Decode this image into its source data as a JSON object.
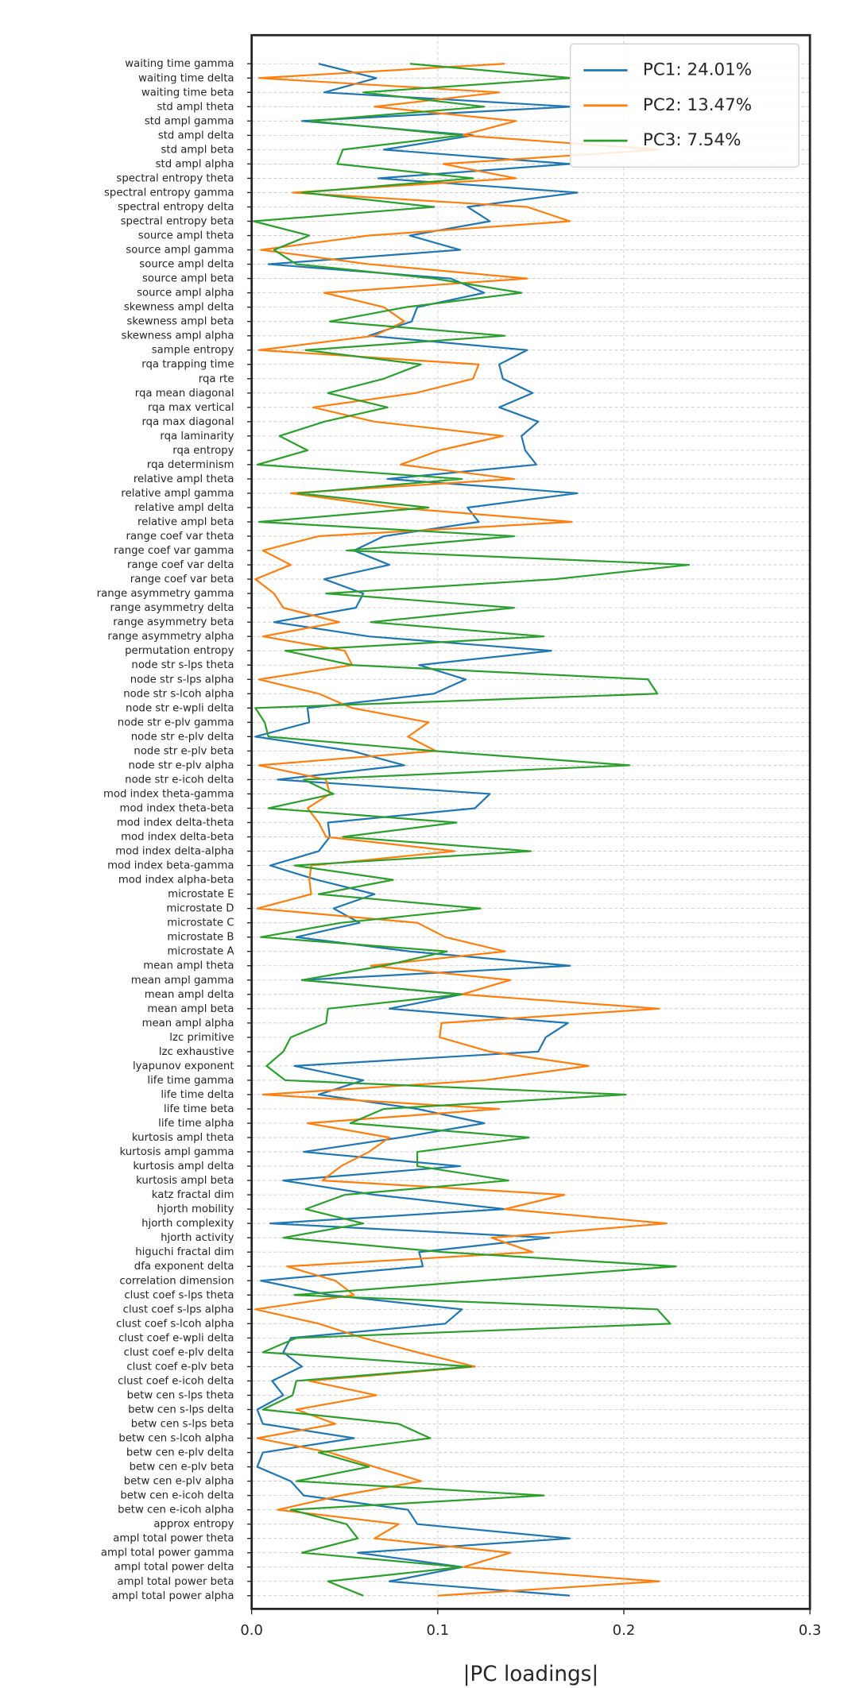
{
  "chart_data": {
    "type": "line",
    "orientation": "horizontal",
    "xlabel": "|PC loadings|",
    "xlim": [
      0,
      0.3
    ],
    "xticks": [
      {
        "value": 0,
        "label": "0.0"
      },
      0.1,
      0.2,
      0.3
    ],
    "grid": true,
    "legend": "upper right",
    "categories": [
      "waiting time gamma",
      "waiting time delta",
      "waiting time beta",
      "std ampl theta",
      "std ampl gamma",
      "std ampl delta",
      "std ampl beta",
      "std ampl alpha",
      "spectral entropy theta",
      "spectral entropy gamma",
      "spectral entropy delta",
      "spectral entropy beta",
      "source ampl theta",
      "source ampl gamma",
      "source ampl delta",
      "source ampl beta",
      "source ampl alpha",
      "skewness ampl delta",
      "skewness ampl beta",
      "skewness ampl alpha",
      "sample entropy",
      "rqa trapping time",
      "rqa rte",
      "rqa mean diagonal",
      "rqa max vertical",
      "rqa max diagonal",
      "rqa laminarity",
      "rqa entropy",
      "rqa determinism",
      "relative ampl theta",
      "relative ampl gamma",
      "relative ampl delta",
      "relative ampl beta",
      "range coef var theta",
      "range coef var gamma",
      "range coef var delta",
      "range coef var beta",
      "range asymmetry gamma",
      "range asymmetry delta",
      "range asymmetry beta",
      "range asymmetry alpha",
      "permutation entropy",
      "node str s-lps theta",
      "node str s-lps alpha",
      "node str s-lcoh alpha",
      "node str e-wpli delta",
      "node str e-plv gamma",
      "node str e-plv delta",
      "node str e-plv beta",
      "node str e-plv alpha",
      "node str e-icoh delta",
      "mod index theta-gamma",
      "mod index theta-beta",
      "mod index delta-theta",
      "mod index delta-beta",
      "mod index delta-alpha",
      "mod index beta-gamma",
      "mod index alpha-beta",
      "microstate E",
      "microstate D",
      "microstate C",
      "microstate B",
      "microstate A",
      "mean ampl theta",
      "mean ampl gamma",
      "mean ampl delta",
      "mean ampl beta",
      "mean ampl alpha",
      "lzc primitive",
      "lzc exhaustive",
      "lyapunov exponent",
      "life time gamma",
      "life time delta",
      "life time beta",
      "life time alpha",
      "kurtosis ampl theta",
      "kurtosis ampl gamma",
      "kurtosis ampl delta",
      "kurtosis ampl beta",
      "katz fractal dim",
      "hjorth mobility",
      "hjorth complexity",
      "hjorth activity",
      "higuchi fractal dim",
      "dfa exponent delta",
      "correlation dimension",
      "clust coef s-lps theta",
      "clust coef s-lps alpha",
      "clust coef s-lcoh alpha",
      "clust coef e-wpli delta",
      "clust coef e-plv delta",
      "clust coef e-plv beta",
      "clust coef e-icoh delta",
      "betw cen s-lps theta",
      "betw cen s-lps delta",
      "betw cen s-lps beta",
      "betw cen s-lcoh alpha",
      "betw cen e-plv delta",
      "betw cen e-plv beta",
      "betw cen e-plv alpha",
      "betw cen e-icoh delta",
      "betw cen e-icoh alpha",
      "approx entropy",
      "ampl total power theta",
      "ampl total power gamma",
      "ampl total power delta",
      "ampl total power beta",
      "ampl total power alpha"
    ],
    "series": [
      {
        "name": "PC1: 24.01%",
        "color": "#1f77b4",
        "values": [
          0.036,
          0.067,
          0.039,
          0.172,
          0.027,
          0.119,
          0.071,
          0.171,
          0.068,
          0.175,
          0.116,
          0.128,
          0.085,
          0.112,
          0.009,
          0.107,
          0.125,
          0.089,
          0.086,
          0.063,
          0.148,
          0.133,
          0.135,
          0.151,
          0.133,
          0.154,
          0.145,
          0.147,
          0.153,
          0.073,
          0.175,
          0.116,
          0.122,
          0.071,
          0.055,
          0.074,
          0.039,
          0.06,
          0.056,
          0.012,
          0.063,
          0.161,
          0.09,
          0.115,
          0.098,
          0.03,
          0.031,
          0.002,
          0.054,
          0.082,
          0.014,
          0.128,
          0.12,
          0.041,
          0.042,
          0.036,
          0.01,
          0.035,
          0.066,
          0.044,
          0.058,
          0.024,
          0.085,
          0.171,
          0.027,
          0.113,
          0.074,
          0.17,
          0.158,
          0.154,
          0.023,
          0.06,
          0.036,
          0.089,
          0.125,
          0.08,
          0.028,
          0.112,
          0.017,
          0.066,
          0.136,
          0.01,
          0.16,
          0.09,
          0.092,
          0.005,
          0.042,
          0.113,
          0.104,
          0.021,
          0.017,
          0.027,
          0.011,
          0.017,
          0.003,
          0.006,
          0.055,
          0.006,
          0.003,
          0.021,
          0.028,
          0.084,
          0.089,
          0.171,
          0.057,
          0.113,
          0.074,
          0.171
        ]
      },
      {
        "name": "PC2: 13.47%",
        "color": "#ff7f0e",
        "values": [
          0.136,
          0.004,
          0.133,
          0.066,
          0.142,
          0.113,
          0.219,
          0.103,
          0.142,
          0.022,
          0.148,
          0.171,
          0.063,
          0.005,
          0.063,
          0.148,
          0.039,
          0.071,
          0.082,
          0.066,
          0.004,
          0.122,
          0.119,
          0.088,
          0.033,
          0.066,
          0.135,
          0.101,
          0.08,
          0.141,
          0.021,
          0.077,
          0.172,
          0.036,
          0.006,
          0.021,
          0.002,
          0.012,
          0.017,
          0.047,
          0.006,
          0.05,
          0.054,
          0.004,
          0.036,
          0.054,
          0.095,
          0.084,
          0.099,
          0.004,
          0.04,
          0.042,
          0.03,
          0.036,
          0.04,
          0.109,
          0.032,
          0.031,
          0.032,
          0.003,
          0.089,
          0.104,
          0.136,
          0.064,
          0.139,
          0.113,
          0.219,
          0.102,
          0.101,
          0.128,
          0.181,
          0.125,
          0.006,
          0.133,
          0.03,
          0.074,
          0.063,
          0.048,
          0.038,
          0.168,
          0.136,
          0.223,
          0.129,
          0.151,
          0.019,
          0.045,
          0.055,
          0.002,
          0.036,
          0.06,
          0.089,
          0.12,
          0.031,
          0.067,
          0.024,
          0.045,
          0.003,
          0.042,
          0.066,
          0.091,
          0.048,
          0.014,
          0.079,
          0.066,
          0.139,
          0.114,
          0.219,
          0.1
        ]
      },
      {
        "name": "PC3: 7.54%",
        "color": "#2ca02c",
        "values": [
          0.085,
          0.172,
          0.06,
          0.125,
          0.031,
          0.113,
          0.049,
          0.046,
          0.119,
          0.027,
          0.098,
          0.001,
          0.031,
          0.012,
          0.024,
          0.098,
          0.145,
          0.083,
          0.042,
          0.136,
          0.029,
          0.091,
          0.071,
          0.041,
          0.073,
          0.039,
          0.015,
          0.03,
          0.003,
          0.113,
          0.025,
          0.095,
          0.004,
          0.141,
          0.051,
          0.235,
          0.163,
          0.04,
          0.141,
          0.064,
          0.157,
          0.018,
          0.054,
          0.213,
          0.218,
          0.002,
          0.007,
          0.009,
          0.098,
          0.203,
          0.028,
          0.044,
          0.009,
          0.11,
          0.049,
          0.15,
          0.023,
          0.076,
          0.036,
          0.123,
          0.048,
          0.005,
          0.105,
          0.071,
          0.027,
          0.113,
          0.041,
          0.04,
          0.021,
          0.017,
          0.008,
          0.018,
          0.201,
          0.071,
          0.053,
          0.149,
          0.089,
          0.089,
          0.138,
          0.05,
          0.029,
          0.06,
          0.017,
          0.103,
          0.228,
          0.123,
          0.023,
          0.218,
          0.225,
          0.024,
          0.006,
          0.118,
          0.024,
          0.022,
          0.006,
          0.079,
          0.096,
          0.036,
          0.063,
          0.024,
          0.157,
          0.021,
          0.051,
          0.057,
          0.027,
          0.113,
          0.041,
          0.06
        ]
      }
    ]
  }
}
